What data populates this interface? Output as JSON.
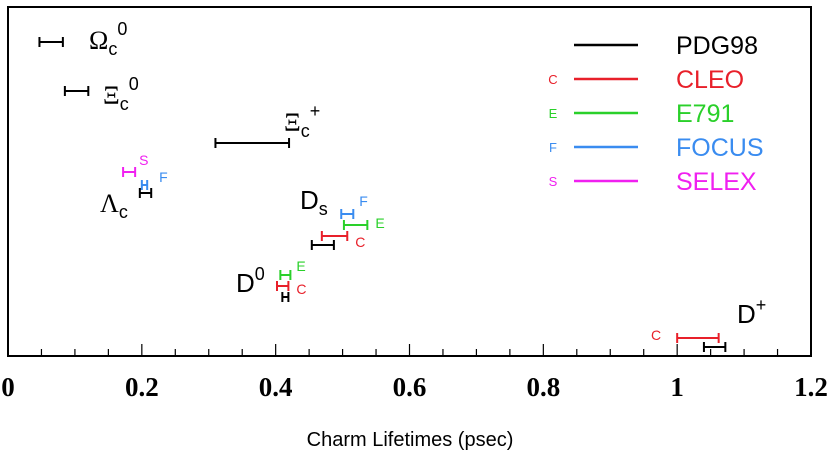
{
  "chart_data": {
    "type": "errorbar",
    "xlabel": "Charm Lifetimes (psec)",
    "xlim": [
      0,
      1.2
    ],
    "x_ticks": [
      {
        "value": 0,
        "label": "0"
      },
      {
        "value": 0.2,
        "label": "0.2"
      },
      {
        "value": 0.4,
        "label": "0.4"
      },
      {
        "value": 0.6,
        "label": "0.6"
      },
      {
        "value": 0.8,
        "label": "0.8"
      },
      {
        "value": 1.0,
        "label": "1"
      },
      {
        "value": 1.2,
        "label": "1.2"
      }
    ],
    "minor_tick_step": 0.05,
    "y_axis": "none",
    "legend": {
      "position": "top-right",
      "entries": [
        {
          "key": "PDG98",
          "name": "PDG98",
          "marker": "",
          "color": "#000000"
        },
        {
          "key": "CLEO",
          "name": "CLEO",
          "marker": "C",
          "color": "#e8202a"
        },
        {
          "key": "E791",
          "name": "E791",
          "marker": "E",
          "color": "#2ad02a"
        },
        {
          "key": "FOCUS",
          "name": "FOCUS",
          "marker": "F",
          "color": "#3a8cf0"
        },
        {
          "key": "SELEX",
          "name": "SELEX",
          "marker": "S",
          "color": "#f020f0"
        }
      ]
    },
    "particles": [
      {
        "id": "omega-c0",
        "name": "Ω",
        "sub": "c",
        "sup": "0",
        "measurements": [
          {
            "experiment": "PDG98",
            "low": 0.047,
            "high": 0.082
          }
        ]
      },
      {
        "id": "xi-c0",
        "name": "Ξ",
        "sub": "c",
        "sup": "0",
        "measurements": [
          {
            "experiment": "PDG98",
            "low": 0.085,
            "high": 0.12
          }
        ]
      },
      {
        "id": "xi-cplus",
        "name": "Ξ",
        "sub": "c",
        "sup": "+",
        "measurements": [
          {
            "experiment": "PDG98",
            "low": 0.31,
            "high": 0.42
          }
        ]
      },
      {
        "id": "lambda-c",
        "name": "Λ",
        "sub": "c",
        "sup": "",
        "measurements": [
          {
            "experiment": "SELEX",
            "low": 0.172,
            "high": 0.19
          },
          {
            "experiment": "FOCUS",
            "low": 0.2,
            "high": 0.208
          },
          {
            "experiment": "PDG98",
            "low": 0.197,
            "high": 0.214
          }
        ]
      },
      {
        "id": "ds",
        "name": "D",
        "sub": "s",
        "sup": "",
        "measurements": [
          {
            "experiment": "FOCUS",
            "low": 0.498,
            "high": 0.516
          },
          {
            "experiment": "E791",
            "low": 0.502,
            "high": 0.537
          },
          {
            "experiment": "CLEO",
            "low": 0.469,
            "high": 0.507
          },
          {
            "experiment": "PDG98",
            "low": 0.454,
            "high": 0.487
          }
        ]
      },
      {
        "id": "d0",
        "name": "D",
        "sub": "",
        "sup": "0",
        "measurements": [
          {
            "experiment": "E791",
            "low": 0.407,
            "high": 0.422
          },
          {
            "experiment": "CLEO",
            "low": 0.402,
            "high": 0.419
          },
          {
            "experiment": "PDG98",
            "low": 0.41,
            "high": 0.419
          }
        ]
      },
      {
        "id": "dplus",
        "name": "D",
        "sub": "",
        "sup": "+",
        "measurements": [
          {
            "experiment": "CLEO",
            "low": 1.0,
            "high": 1.062
          },
          {
            "experiment": "PDG98",
            "low": 1.04,
            "high": 1.072
          }
        ]
      }
    ]
  }
}
